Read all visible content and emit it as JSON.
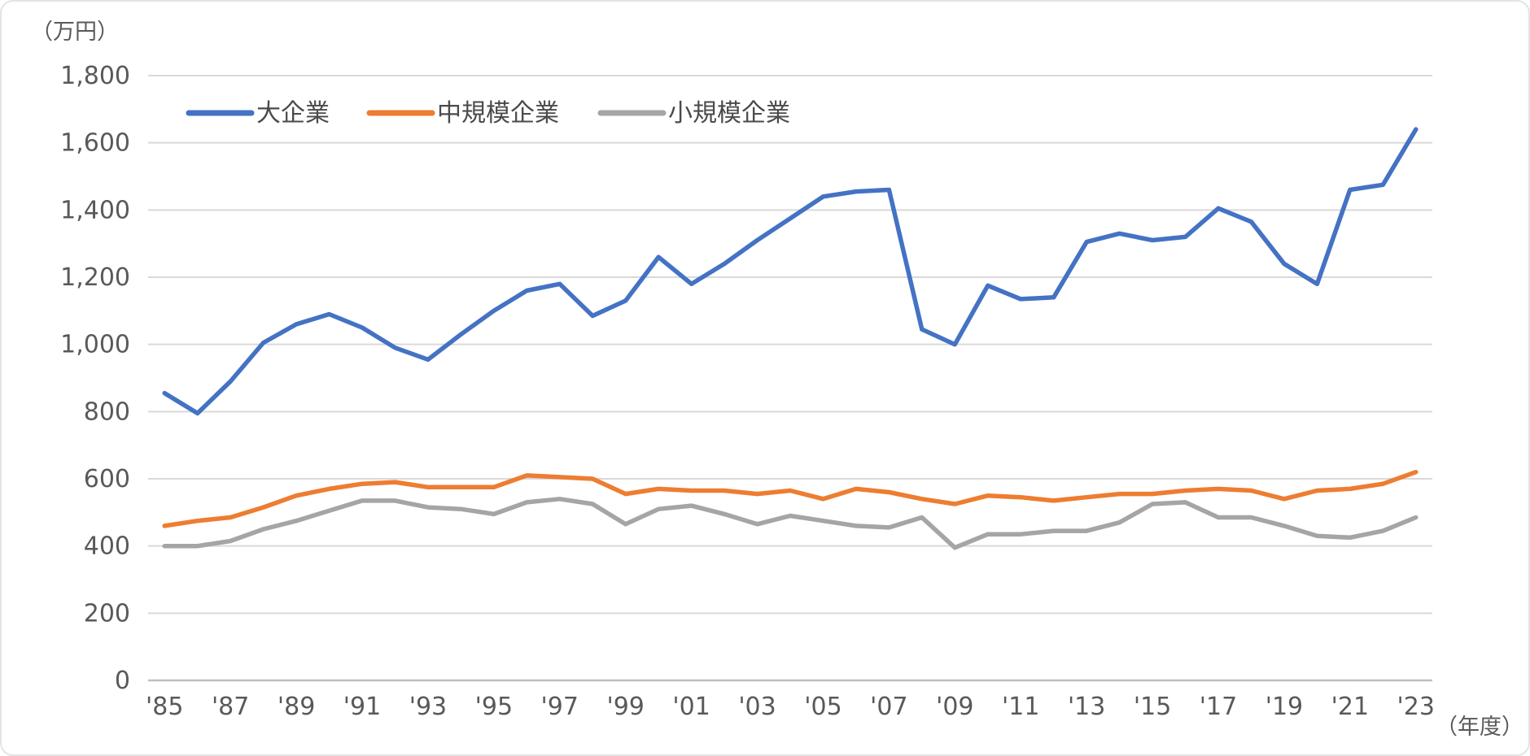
{
  "chart_data": {
    "type": "line",
    "title": "",
    "y_unit_label": "（万円）",
    "x_unit_label": "（年度）",
    "xlabel": "年度",
    "ylabel": "万円",
    "ylim": [
      0,
      1800
    ],
    "y_step": 200,
    "grid": "horizontal",
    "legend_position": "top-inside",
    "grid_color": "#d9d9d9",
    "axis_line_color": "#bfbfbf",
    "text_color": "#595959",
    "x": [
      1985,
      1986,
      1987,
      1988,
      1989,
      1990,
      1991,
      1992,
      1993,
      1994,
      1995,
      1996,
      1997,
      1998,
      1999,
      2000,
      2001,
      2002,
      2003,
      2004,
      2005,
      2006,
      2007,
      2008,
      2009,
      2010,
      2011,
      2012,
      2013,
      2014,
      2015,
      2016,
      2017,
      2018,
      2019,
      2020,
      2021,
      2022,
      2023
    ],
    "x_tick_labels": [
      "'85",
      "'87",
      "'89",
      "'91",
      "'93",
      "'95",
      "'97",
      "'99",
      "'01",
      "'03",
      "'05",
      "'07",
      "'09",
      "'11",
      "'13",
      "'15",
      "'17",
      "'19",
      "'21",
      "'23"
    ],
    "y_ticks": [
      "1,800",
      "1,600",
      "1,400",
      "1,200",
      "1,000",
      "800",
      "600",
      "400",
      "200",
      "0"
    ],
    "series": [
      {
        "name": "大企業",
        "color": "#4472c4",
        "values": [
          855,
          795,
          890,
          1005,
          1060,
          1090,
          1050,
          990,
          955,
          1030,
          1100,
          1160,
          1180,
          1085,
          1130,
          1260,
          1180,
          1240,
          1310,
          1375,
          1440,
          1455,
          1460,
          1045,
          1000,
          1175,
          1135,
          1140,
          1305,
          1330,
          1310,
          1320,
          1405,
          1365,
          1240,
          1180,
          1460,
          1475,
          1640
        ]
      },
      {
        "name": "中規模企業",
        "color": "#ed7d31",
        "values": [
          460,
          475,
          485,
          515,
          550,
          570,
          585,
          590,
          575,
          575,
          575,
          610,
          605,
          600,
          555,
          570,
          565,
          565,
          555,
          565,
          540,
          570,
          560,
          540,
          525,
          550,
          545,
          535,
          545,
          555,
          555,
          565,
          570,
          565,
          540,
          565,
          570,
          585,
          620
        ]
      },
      {
        "name": "小規模企業",
        "color": "#a5a5a5",
        "values": [
          400,
          400,
          415,
          450,
          475,
          505,
          535,
          535,
          515,
          510,
          495,
          530,
          540,
          525,
          465,
          510,
          520,
          495,
          465,
          490,
          475,
          460,
          455,
          485,
          395,
          435,
          435,
          445,
          445,
          470,
          525,
          530,
          485,
          485,
          460,
          430,
          425,
          445,
          485
        ]
      }
    ]
  }
}
